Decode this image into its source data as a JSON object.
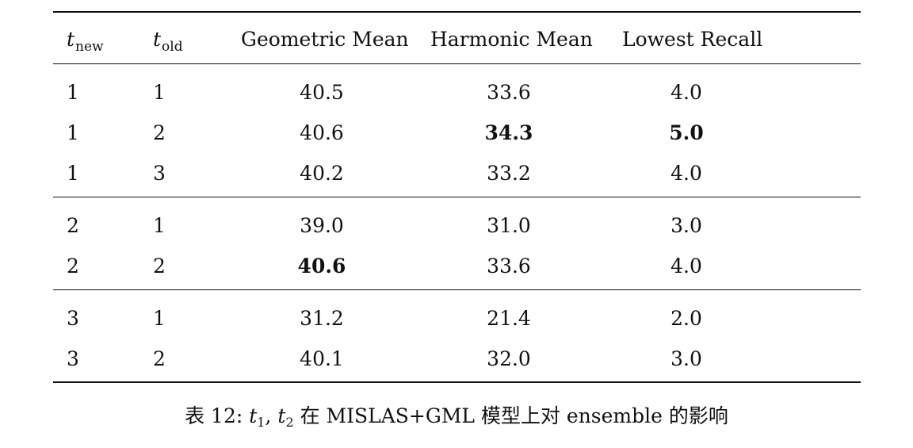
{
  "table": {
    "headers": {
      "t_new_base": "t",
      "t_new_sub": "new",
      "t_old_base": "t",
      "t_old_sub": "old",
      "geometric_mean": "Geometric Mean",
      "harmonic_mean": "Harmonic Mean",
      "lowest_recall": "Lowest Recall"
    },
    "rows": [
      {
        "t_new": "1",
        "t_old": "1",
        "geometric_mean": "40.5",
        "harmonic_mean": "33.6",
        "lowest_recall": "4.0"
      },
      {
        "t_new": "1",
        "t_old": "2",
        "geometric_mean": "40.6",
        "harmonic_mean": "34.3",
        "lowest_recall": "5.0"
      },
      {
        "t_new": "1",
        "t_old": "3",
        "geometric_mean": "40.2",
        "harmonic_mean": "33.2",
        "lowest_recall": "4.0"
      },
      {
        "t_new": "2",
        "t_old": "1",
        "geometric_mean": "39.0",
        "harmonic_mean": "31.0",
        "lowest_recall": "3.0"
      },
      {
        "t_new": "2",
        "t_old": "2",
        "geometric_mean": "40.6",
        "harmonic_mean": "33.6",
        "lowest_recall": "4.0"
      },
      {
        "t_new": "3",
        "t_old": "1",
        "geometric_mean": "31.2",
        "harmonic_mean": "21.4",
        "lowest_recall": "2.0"
      },
      {
        "t_new": "3",
        "t_old": "2",
        "geometric_mean": "40.1",
        "harmonic_mean": "32.0",
        "lowest_recall": "3.0"
      }
    ]
  },
  "caption": {
    "prefix": "表 12: ",
    "t": "t",
    "sub1": "1",
    "comma": ", ",
    "sub2": "2",
    "suffix": " 在 MISLAS+GML 模型上对 ensemble 的影响"
  }
}
